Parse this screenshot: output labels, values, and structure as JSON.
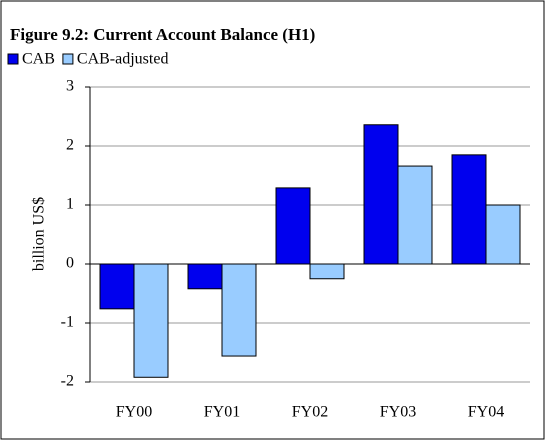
{
  "chart_data": {
    "type": "bar",
    "title": "Figure 9.2: Current Account Balance (H1)",
    "y_label": "billion US$",
    "categories": [
      "FY00",
      "FY01",
      "FY02",
      "FY03",
      "FY04"
    ],
    "series": [
      {
        "name": "CAB",
        "color": "#0000ee",
        "values": [
          -0.76,
          -0.42,
          1.29,
          2.36,
          1.85
        ]
      },
      {
        "name": "CAB-adjusted",
        "color": "#99ccff",
        "values": [
          -1.92,
          -1.56,
          -0.25,
          1.66,
          1.0
        ]
      }
    ],
    "ylim": [
      -2,
      3
    ],
    "yticks": [
      -2,
      -1,
      0,
      1,
      2,
      3
    ],
    "grid": true,
    "legend": "top-left"
  }
}
